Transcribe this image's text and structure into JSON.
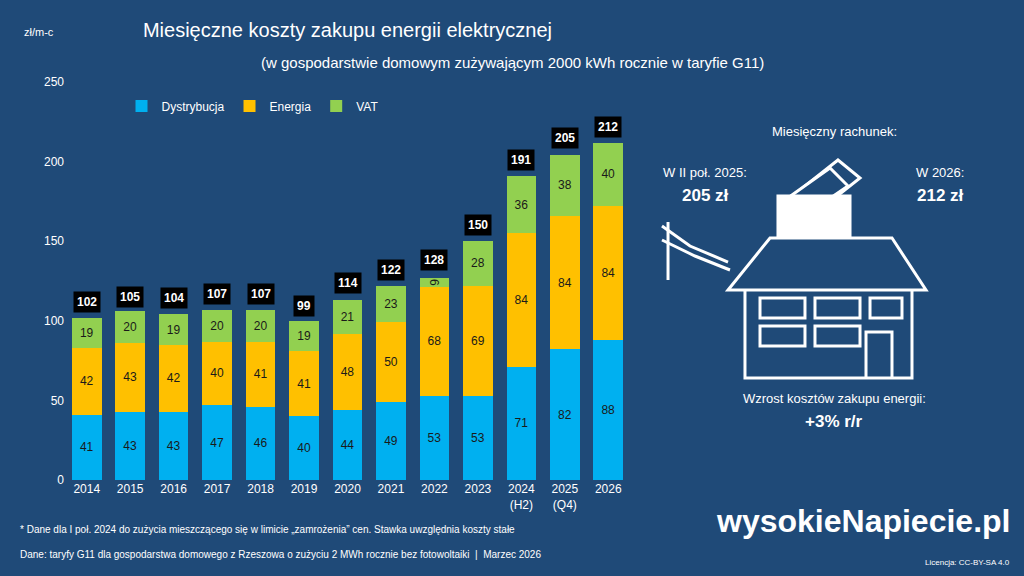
{
  "chart_data": {
    "type": "bar",
    "title": "Miesięczne koszty zakupu energii elektrycznej",
    "subtitle": "(w gospodarstwie domowym zużywającym 2000 kWh rocznie w taryfie G11)",
    "ylabel": "zł/m-c",
    "categories": [
      "2014",
      "2015",
      "2016",
      "2017",
      "2018",
      "2019",
      "2020",
      "2021",
      "2022",
      "2023",
      "2024 (H2)",
      "2025 (Q4)",
      "2026"
    ],
    "series": [
      {
        "name": "Dystrybucja",
        "color": "#00b0f0",
        "values": [
          41,
          43,
          43,
          47,
          46,
          40,
          44,
          49,
          53,
          53,
          71,
          82,
          88
        ]
      },
      {
        "name": "Energia",
        "color": "#ffc000",
        "values": [
          42,
          43,
          42,
          40,
          41,
          41,
          48,
          50,
          68,
          69,
          84,
          84,
          84
        ]
      },
      {
        "name": "VAT",
        "color": "#92d050",
        "values": [
          19,
          20,
          19,
          20,
          20,
          19,
          21,
          23,
          6,
          28,
          36,
          38,
          40
        ]
      }
    ],
    "totals": [
      102,
      105,
      104,
      107,
      107,
      99,
      114,
      122,
      128,
      150,
      191,
      205,
      212
    ],
    "ylim": [
      0,
      250
    ],
    "yticks": [
      0,
      50,
      100,
      150,
      200,
      250
    ],
    "stacked": true,
    "data_labels": true,
    "grid": false,
    "legend": "top-left"
  },
  "side_panel": {
    "heading": "Miesięczny rachunek:",
    "left_label": "W II poł. 2025:",
    "left_value": "205 zł",
    "right_label": "W 2026:",
    "right_value": "212 zł",
    "change_label": "Wzrost kosztów zakupu energii:",
    "change_value": "+3% r/r"
  },
  "footnotes": {
    "note": "* Dane dla I poł. 2024 do zużycia mieszczącego się w limicie „zamrożenia” cen. Stawka uwzględnia koszty stałe",
    "source": "Dane: taryfy G11 dla gospodarstwa domowego z Rzeszowa o zużyciu 2 MWh rocznie bez fotowoltaiki  |  Marzec 2026",
    "brand": "wysokieNapiecie.pl",
    "license": "Licencja: CC-BY-SA 4.0"
  }
}
